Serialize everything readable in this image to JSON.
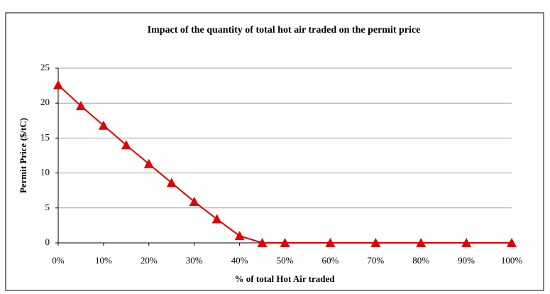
{
  "chart_data": {
    "type": "line",
    "title": "Impact of the quantity of total hot air traded on the permit price",
    "x_label": "% of total Hot Air traded",
    "y_label": "Permit Price ($/tC)",
    "x": [
      0,
      5,
      10,
      15,
      20,
      25,
      30,
      35,
      40,
      45,
      50,
      60,
      70,
      80,
      90,
      100
    ],
    "series": [
      {
        "name": "Permit Price",
        "color": "#e00000",
        "values": [
          22.6,
          19.6,
          16.8,
          14.0,
          11.3,
          8.6,
          5.9,
          3.4,
          1.0,
          0,
          0,
          0,
          0,
          0,
          0,
          0
        ]
      }
    ],
    "xlim": [
      0,
      100
    ],
    "xticks": [
      {
        "value": 0,
        "label": "0%"
      },
      {
        "value": 10,
        "label": "10%"
      },
      {
        "value": 20,
        "label": "20%"
      },
      {
        "value": 30,
        "label": "30%"
      },
      {
        "value": 40,
        "label": "40%"
      },
      {
        "value": 50,
        "label": "50%"
      },
      {
        "value": 60,
        "label": "60%"
      },
      {
        "value": 70,
        "label": "70%"
      },
      {
        "value": 80,
        "label": "80%"
      },
      {
        "value": 90,
        "label": "90%"
      },
      {
        "value": 100,
        "label": "100%"
      }
    ],
    "ylim": [
      0,
      25
    ],
    "yticks": [
      0,
      5,
      10,
      15,
      20,
      25
    ],
    "grid": true
  }
}
